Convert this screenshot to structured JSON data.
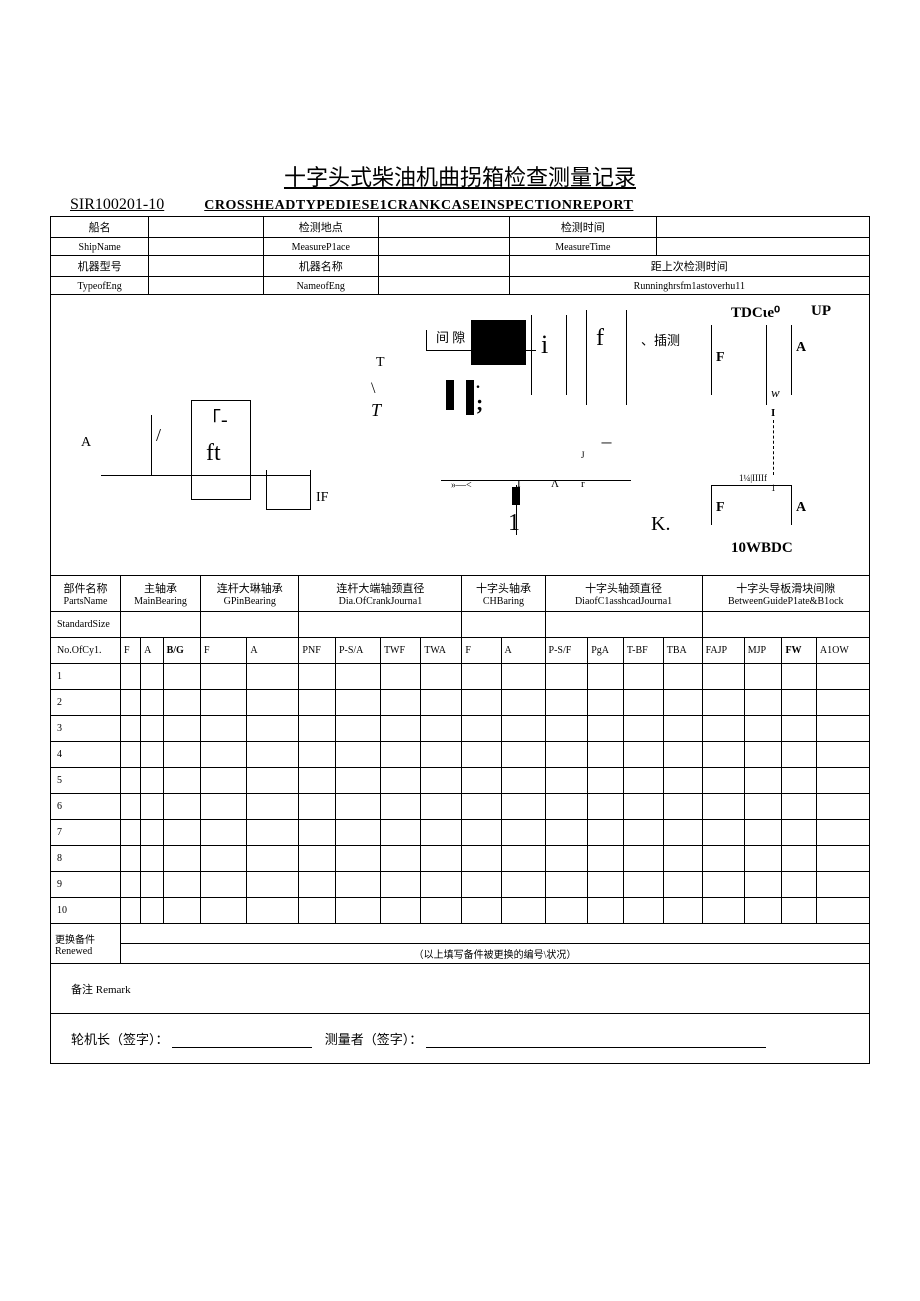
{
  "title_cn": "十字头式柴油机曲拐箱检查测量记录",
  "doc_no": "SIR100201-10",
  "title_en": "CROSSHEADTYPEDIESE1CRANKCASEINSPECTIONREPORT",
  "info": {
    "ship_cn": "船名",
    "ship_en": "ShipName",
    "place_cn": "检测地点",
    "place_en": "MeasureP1ace",
    "time_cn": "检测时间",
    "time_en": "MeasureTime",
    "engtype_cn": "机器型号",
    "engtype_en": "TypeofEng",
    "engname_cn": "机器名称",
    "engname_en": "NameofEng",
    "lasttime_cn": "距上次检测时间",
    "lasttime_en": "Runninghrsfm1astoverhu11"
  },
  "diagram": {
    "A": "A",
    "T": "T",
    "T2": "T",
    "IF": "IF",
    "slash": "/",
    "gamma": "「-",
    "ft": "ft",
    "gap_cn": "间  隙",
    "i": "i",
    "f": "f",
    "insert_cn": "、插测",
    "bar1": "|",
    "bar2": "|",
    "J": "J",
    "dash": "一",
    "arrow": "»—<",
    "caret": "Λ",
    "r": "r",
    "one": "1",
    "K": "K.",
    "F1": "F",
    "A1": "A",
    "F2": "F",
    "A2": "A",
    "W": "w",
    "I1": "I",
    "tdc": "TDCιe⁰",
    "up": "UP",
    "ten": "10WBDC",
    "onequarter": "1¼|IIIIf",
    "onebelow": "1",
    "Ibelow": "I",
    "colon": ";",
    "dot": "."
  },
  "parts": {
    "name_cn": "部件名称",
    "name_en": "PartsName",
    "main_cn": "主轴承",
    "main_en": "MainBearing",
    "gpin_cn": "连杆大琳轴承",
    "gpin_en": "GPinBearing",
    "crank_cn": "连杆大端轴颈直径",
    "crank_en": "Dia.OfCrankJourna1",
    "ch_cn": "十字头轴承",
    "ch_en": "CHBaring",
    "chj_cn": "十字头轴颈直径",
    "chj_en": "DiaofC1asshcadJourna1",
    "guide_cn": "十字头导板滑块间隙",
    "guide_en": "BetweenGuideP1ate&B1ock",
    "std": "StandardSize",
    "nocy": "No.OfCy1.",
    "cols": [
      "F",
      "A",
      "B/G",
      "F",
      "A",
      "PNF",
      "P-S/A",
      "TWF",
      "TWA",
      "F",
      "A",
      "P-S/F",
      "PgA",
      "T-BF",
      "TBA",
      "FAJP",
      "MJP",
      "FW",
      "A1OW"
    ],
    "rows": [
      "1",
      "2",
      "3",
      "4",
      "5",
      "6",
      "7",
      "8",
      "9",
      "10"
    ]
  },
  "renewed": {
    "cn": "更换备件",
    "en": "Renewed",
    "note": "（以上填写备件被更换的编号\\状况）"
  },
  "remark": {
    "label_cn": "备注",
    "label_en": "Remark"
  },
  "sign": {
    "chief": "轮机长（签字）：",
    "measurer": "测量者（签字）："
  }
}
